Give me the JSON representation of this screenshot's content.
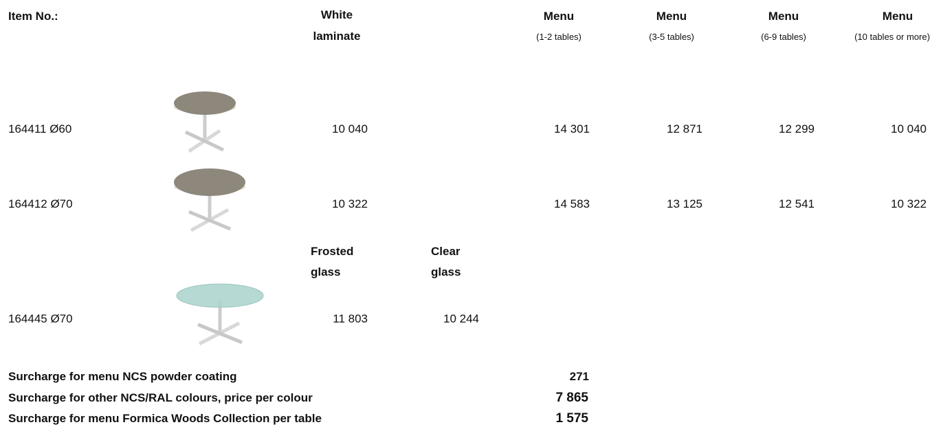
{
  "header": {
    "item_no": "Item No.:",
    "white_laminate": [
      "White",
      "laminate"
    ],
    "menu": [
      {
        "title": "Menu",
        "note": "(1-2 tables)"
      },
      {
        "title": "Menu",
        "note": "(3-5 tables)"
      },
      {
        "title": "Menu",
        "note": "(6-9 tables)"
      },
      {
        "title": "Menu",
        "note": "(10 tables or more)"
      }
    ]
  },
  "rows": [
    {
      "item": "164411 Ø60",
      "white_laminate": "10 040",
      "menu": [
        "14 301",
        "12 871",
        "12 299",
        "10 040"
      ]
    },
    {
      "item": "164412 Ø70",
      "white_laminate": "10 322",
      "menu": [
        "14 583",
        "13 125",
        "12 541",
        "10 322"
      ]
    }
  ],
  "glass_header": {
    "frosted": [
      "Frosted",
      "glass"
    ],
    "clear": [
      "Clear",
      "glass"
    ]
  },
  "glass_row": {
    "item": "164445 Ø70",
    "frosted": "11 803",
    "clear": "10 244"
  },
  "surcharges": [
    {
      "label": "Surcharge for menu NCS powder coating",
      "price": "271"
    },
    {
      "label": "Surcharge for other NCS/RAL colours, price per colour",
      "price": "7 865"
    },
    {
      "label": "Surcharge for menu Formica Woods Collection per table",
      "price": "1 575"
    }
  ]
}
